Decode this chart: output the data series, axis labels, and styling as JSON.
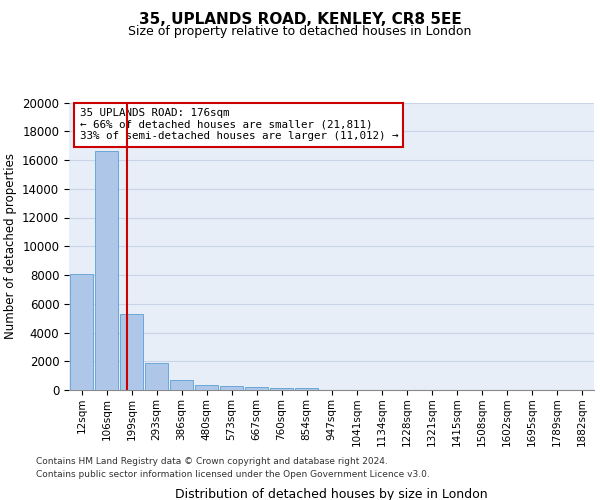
{
  "title": "35, UPLANDS ROAD, KENLEY, CR8 5EE",
  "subtitle": "Size of property relative to detached houses in London",
  "xlabel": "Distribution of detached houses by size in London",
  "ylabel": "Number of detached properties",
  "categories": [
    "12sqm",
    "106sqm",
    "199sqm",
    "293sqm",
    "386sqm",
    "480sqm",
    "573sqm",
    "667sqm",
    "760sqm",
    "854sqm",
    "947sqm",
    "1041sqm",
    "1134sqm",
    "1228sqm",
    "1321sqm",
    "1415sqm",
    "1508sqm",
    "1602sqm",
    "1695sqm",
    "1789sqm",
    "1882sqm"
  ],
  "values": [
    8100,
    16600,
    5300,
    1850,
    700,
    370,
    270,
    210,
    170,
    150,
    0,
    0,
    0,
    0,
    0,
    0,
    0,
    0,
    0,
    0,
    0
  ],
  "bar_color": "#aec6e8",
  "bar_edge_color": "#5a9fd4",
  "red_line_x": 1.83,
  "annotation_text": "35 UPLANDS ROAD: 176sqm\n← 66% of detached houses are smaller (21,811)\n33% of semi-detached houses are larger (11,012) →",
  "annotation_box_color": "#ffffff",
  "annotation_box_edge": "#cc0000",
  "grid_color": "#c8d4e8",
  "background_color": "#e8eef8",
  "ylim": [
    0,
    20000
  ],
  "yticks": [
    0,
    2000,
    4000,
    6000,
    8000,
    10000,
    12000,
    14000,
    16000,
    18000,
    20000
  ],
  "footer_line1": "Contains HM Land Registry data © Crown copyright and database right 2024.",
  "footer_line2": "Contains public sector information licensed under the Open Government Licence v3.0."
}
